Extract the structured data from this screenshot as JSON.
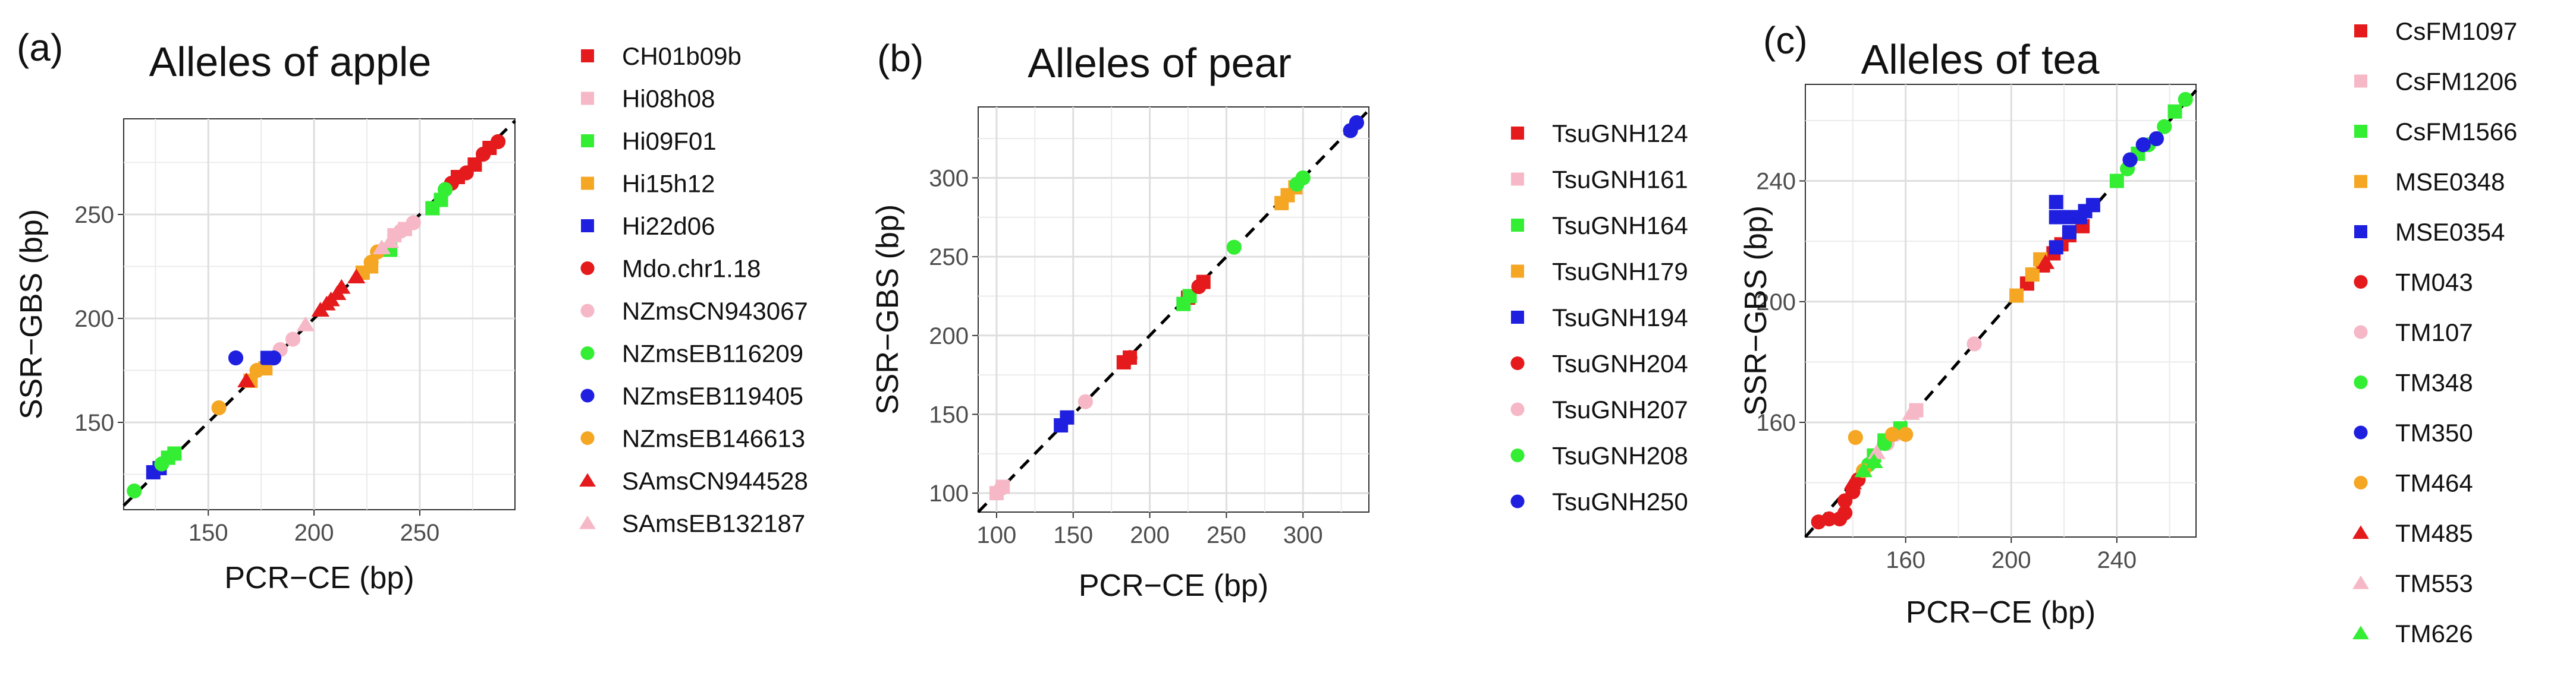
{
  "chart_data": [
    {
      "type": "scatter",
      "panel_label": "(a)",
      "title": "Alleles of apple",
      "xlabel": "PCR−CE (bp)",
      "ylabel": "SSR−GBS (bp)",
      "xlim": [
        110,
        295
      ],
      "ylim": [
        108,
        296
      ],
      "xticks": [
        150,
        200,
        250
      ],
      "yticks": [
        150,
        200,
        250
      ],
      "grid": true,
      "reference_line": "y = x (dashed)",
      "legend_position": "right",
      "series": [
        {
          "name": "CH01b09b",
          "color": "#e41a1c",
          "marker": "square",
          "points": [
            [
              268,
              268
            ],
            [
              276,
              274
            ],
            [
              283,
              282
            ]
          ]
        },
        {
          "name": "Hi08h08",
          "color": "#f6b8c6",
          "marker": "square",
          "points": [
            [
              238,
              240
            ],
            [
              243,
              243
            ]
          ]
        },
        {
          "name": "Hi09F01",
          "color": "#33ee33",
          "marker": "square",
          "points": [
            [
              131,
              133
            ],
            [
              134,
              135
            ],
            [
              236,
              233
            ],
            [
              256,
              253
            ],
            [
              260,
              257
            ]
          ]
        },
        {
          "name": "Hi15h12",
          "color": "#f5a623",
          "marker": "square",
          "points": [
            [
              170,
              170
            ],
            [
              177,
              176
            ],
            [
              223,
              222
            ],
            [
              227,
              225
            ]
          ]
        },
        {
          "name": "Hi22d06",
          "color": "#1f1fe0",
          "marker": "square",
          "points": [
            [
              124,
              126
            ],
            [
              127,
              128
            ],
            [
              178,
              181
            ]
          ]
        },
        {
          "name": "Mdo.chr1.18",
          "color": "#e41a1c",
          "marker": "circle",
          "points": [
            [
              265,
              265
            ],
            [
              272,
              270
            ],
            [
              280,
              279
            ],
            [
              287,
              285
            ]
          ]
        },
        {
          "name": "NZmsCN943067",
          "color": "#f6b8c6",
          "marker": "circle",
          "points": [
            [
              184,
              185
            ],
            [
              190,
              190
            ],
            [
              241,
              242
            ],
            [
              247,
              246
            ]
          ]
        },
        {
          "name": "NZmsEB116209",
          "color": "#33ee33",
          "marker": "circle",
          "points": [
            [
              115,
              117
            ],
            [
              128,
              130
            ],
            [
              262,
              262
            ]
          ]
        },
        {
          "name": "NZmsEB119405",
          "color": "#1f1fe0",
          "marker": "circle",
          "points": [
            [
              163,
              181
            ],
            [
              181,
              181
            ]
          ]
        },
        {
          "name": "NZmsEB146613",
          "color": "#f5a623",
          "marker": "circle",
          "points": [
            [
              155,
              157
            ],
            [
              173,
              175
            ],
            [
              227,
              227
            ],
            [
              230,
              232
            ]
          ]
        },
        {
          "name": "SAmsCN944528",
          "color": "#e41a1c",
          "marker": "triangle",
          "points": [
            [
              168,
              170
            ],
            [
              203,
              204
            ],
            [
              206,
              207
            ],
            [
              208,
              209
            ],
            [
              211,
              212
            ],
            [
              213,
              215
            ],
            [
              220,
              220
            ]
          ]
        },
        {
          "name": "SAmsEB132187",
          "color": "#f6b8c6",
          "marker": "triangle",
          "points": [
            [
              196,
              197
            ],
            [
              232,
              234
            ],
            [
              236,
              237
            ]
          ]
        }
      ]
    },
    {
      "type": "scatter",
      "panel_label": "(b)",
      "title": "Alleles of pear",
      "xlabel": "PCR−CE (bp)",
      "ylabel": "SSR−GBS (bp)",
      "xlim": [
        88,
        343
      ],
      "ylim": [
        88,
        345
      ],
      "xticks": [
        100,
        150,
        200,
        250,
        300
      ],
      "yticks": [
        100,
        150,
        200,
        250,
        300
      ],
      "grid": true,
      "reference_line": "y = x (dashed)",
      "legend_position": "right",
      "series": [
        {
          "name": "TsuGNH124",
          "color": "#e41a1c",
          "marker": "square",
          "points": [
            [
              183,
              183
            ],
            [
              187,
              186
            ],
            [
              225,
              224
            ],
            [
              235,
              234
            ]
          ]
        },
        {
          "name": "TsuGNH161",
          "color": "#f6b8c6",
          "marker": "square",
          "points": [
            [
              100,
              100
            ],
            [
              104,
              104
            ]
          ]
        },
        {
          "name": "TsuGNH164",
          "color": "#33ee33",
          "marker": "square",
          "points": [
            [
              222,
              220
            ],
            [
              226,
              225
            ]
          ]
        },
        {
          "name": "TsuGNH179",
          "color": "#f5a623",
          "marker": "square",
          "points": [
            [
              286,
              284
            ],
            [
              290,
              289
            ],
            [
              295,
              294
            ]
          ]
        },
        {
          "name": "TsuGNH194",
          "color": "#1f1fe0",
          "marker": "square",
          "points": [
            [
              142,
              143
            ],
            [
              146,
              148
            ]
          ]
        },
        {
          "name": "TsuGNH204",
          "color": "#e41a1c",
          "marker": "circle",
          "points": [
            [
              187,
              186
            ],
            [
              232,
              231
            ]
          ]
        },
        {
          "name": "TsuGNH207",
          "color": "#f6b8c6",
          "marker": "circle",
          "points": [
            [
              103,
              103
            ],
            [
              158,
              158
            ]
          ]
        },
        {
          "name": "TsuGNH208",
          "color": "#33ee33",
          "marker": "circle",
          "points": [
            [
              255,
              256
            ],
            [
              296,
              296
            ],
            [
              300,
              300
            ]
          ]
        },
        {
          "name": "TsuGNH250",
          "color": "#1f1fe0",
          "marker": "circle",
          "points": [
            [
              331,
              330
            ],
            [
              335,
              335
            ]
          ]
        }
      ]
    },
    {
      "type": "scatter",
      "panel_label": "(c)",
      "title": "Alleles of tea",
      "xlabel": "PCR−CE (bp)",
      "ylabel": "SSR−GBS (bp)",
      "xlim": [
        122,
        270
      ],
      "ylim": [
        122,
        272
      ],
      "xticks": [
        160,
        200,
        240
      ],
      "yticks": [
        160,
        200,
        240
      ],
      "grid": true,
      "reference_line": "y = x (dashed)",
      "legend_position": "right",
      "series": [
        {
          "name": "CsFM1097",
          "color": "#e41a1c",
          "marker": "square",
          "points": [
            [
              206,
              206
            ],
            [
              212,
              212
            ],
            [
              216,
              216
            ],
            [
              219,
              219
            ],
            [
              222,
              222
            ],
            [
              227,
              225
            ]
          ]
        },
        {
          "name": "CsFM1206",
          "color": "#f6b8c6",
          "marker": "square",
          "points": [
            [
              164,
              164
            ]
          ]
        },
        {
          "name": "CsFM1566",
          "color": "#33ee33",
          "marker": "square",
          "points": [
            [
              148,
              149
            ],
            [
              152,
              154
            ],
            [
              158,
              158
            ],
            [
              240,
              240
            ],
            [
              248,
              249
            ],
            [
              262,
              263
            ]
          ]
        },
        {
          "name": "MSE0348",
          "color": "#f5a623",
          "marker": "square",
          "points": [
            [
              202,
              202
            ],
            [
              208,
              209
            ],
            [
              211,
              214
            ]
          ]
        },
        {
          "name": "MSE0354",
          "color": "#1f1fe0",
          "marker": "square",
          "points": [
            [
              217,
              218
            ],
            [
              217,
              228
            ],
            [
              217,
              233
            ],
            [
              222,
              223
            ],
            [
              222,
              228
            ],
            [
              226,
              228
            ],
            [
              228,
              230
            ],
            [
              231,
              232
            ]
          ]
        },
        {
          "name": "TM043",
          "color": "#e41a1c",
          "marker": "circle",
          "points": [
            [
              127,
              127
            ],
            [
              131,
              128
            ],
            [
              135,
              128
            ],
            [
              137,
              130
            ],
            [
              137,
              134
            ],
            [
              140,
              137
            ],
            [
              142,
              141
            ]
          ]
        },
        {
          "name": "TM107",
          "color": "#f6b8c6",
          "marker": "circle",
          "points": [
            [
              153,
              153
            ],
            [
              156,
              156
            ],
            [
              186,
              186
            ]
          ]
        },
        {
          "name": "TM348",
          "color": "#33ee33",
          "marker": "circle",
          "points": [
            [
              146,
              146
            ],
            [
              152,
              153
            ],
            [
              158,
              157
            ],
            [
              244,
              244
            ],
            [
              252,
              252
            ],
            [
              258,
              258
            ],
            [
              266,
              267
            ]
          ]
        },
        {
          "name": "TM350",
          "color": "#1f1fe0",
          "marker": "circle",
          "points": [
            [
              245,
              247
            ],
            [
              250,
              252
            ],
            [
              255,
              254
            ]
          ]
        },
        {
          "name": "TM464",
          "color": "#f5a623",
          "marker": "circle",
          "points": [
            [
              141,
              155
            ],
            [
              155,
              156
            ],
            [
              160,
              156
            ],
            [
              144,
              144
            ]
          ]
        },
        {
          "name": "TM485",
          "color": "#e41a1c",
          "marker": "triangle",
          "points": [
            [
              140,
              140
            ],
            [
              213,
              213
            ]
          ]
        },
        {
          "name": "TM553",
          "color": "#f6b8c6",
          "marker": "triangle",
          "points": [
            [
              149,
              150
            ],
            [
              162,
              163
            ]
          ]
        },
        {
          "name": "TM626",
          "color": "#33ee33",
          "marker": "triangle",
          "points": [
            [
              144,
              144
            ],
            [
              148,
              147
            ]
          ]
        }
      ]
    }
  ]
}
